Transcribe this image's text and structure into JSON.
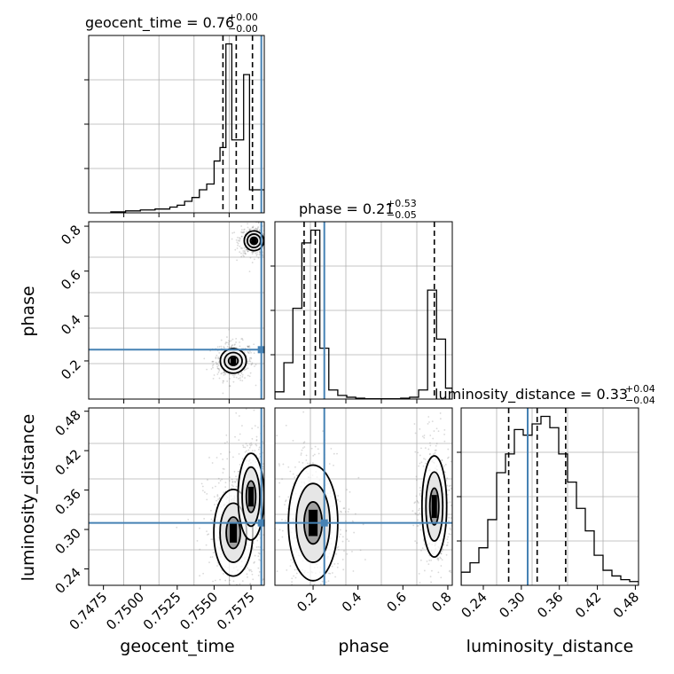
{
  "colors": {
    "truth": "#4682b4",
    "hist_line": "#000000",
    "grid": "#b0b0b0",
    "contour": "#000000",
    "scatter": "#808080"
  },
  "chart_data": [
    {
      "type": "histogram",
      "panel": "geocent_time-marginal",
      "title_main": "geocent_time = 0.76",
      "title_plus": "+0.00",
      "title_minus": "−0.00",
      "xlim": [
        0.7465,
        0.7584
      ],
      "bin_edges": [
        0.748,
        0.749,
        0.75,
        0.751,
        0.752,
        0.7525,
        0.753,
        0.7535,
        0.754,
        0.7545,
        0.755,
        0.7554,
        0.7558,
        0.7562,
        0.7566,
        0.757,
        0.7574,
        0.7578,
        0.7581,
        0.7584
      ],
      "counts": [
        0.005,
        0.01,
        0.015,
        0.02,
        0.03,
        0.04,
        0.06,
        0.08,
        0.12,
        0.15,
        0.27,
        0.34,
        0.88,
        0.38,
        0.38,
        0.72,
        0.12,
        0.12,
        0.12
      ],
      "quantile_lines": [
        0.7556,
        0.7565,
        0.7576
      ],
      "truth": 0.7582,
      "grid": true
    },
    {
      "type": "histogram",
      "panel": "phase-marginal",
      "title_main": "phase = 0.21",
      "title_plus": "+0.53",
      "title_minus": "−0.05",
      "xlim": [
        0.03,
        0.82
      ],
      "bin_edges": [
        0.03,
        0.07,
        0.11,
        0.15,
        0.19,
        0.23,
        0.27,
        0.31,
        0.35,
        0.39,
        0.43,
        0.47,
        0.51,
        0.55,
        0.59,
        0.63,
        0.67,
        0.71,
        0.75,
        0.79,
        0.82
      ],
      "counts": [
        0.04,
        0.2,
        0.5,
        0.86,
        0.93,
        0.28,
        0.05,
        0.02,
        0.01,
        0.005,
        0.002,
        0.002,
        0.002,
        0.002,
        0.005,
        0.01,
        0.05,
        0.6,
        0.33,
        0.06
      ],
      "quantile_lines": [
        0.16,
        0.21,
        0.74
      ],
      "truth": 0.25,
      "grid": true
    },
    {
      "type": "histogram",
      "panel": "luminosity-distance-marginal",
      "title_main": "luminosity_distance = 0.33",
      "title_plus": "+0.04",
      "title_minus": "−0.04",
      "xlim": [
        0.205,
        0.485
      ],
      "xticks": [
        "0.24",
        "0.30",
        "0.36",
        "0.42",
        "0.48"
      ],
      "xtick_values": [
        0.24,
        0.3,
        0.36,
        0.42,
        0.48
      ],
      "xlabel": "luminosity_distance",
      "bin_edges": [
        0.205,
        0.219,
        0.233,
        0.247,
        0.261,
        0.275,
        0.289,
        0.303,
        0.317,
        0.331,
        0.345,
        0.359,
        0.373,
        0.387,
        0.401,
        0.415,
        0.429,
        0.443,
        0.457,
        0.471,
        0.485
      ],
      "counts": [
        0.07,
        0.12,
        0.2,
        0.35,
        0.6,
        0.7,
        0.83,
        0.8,
        0.86,
        0.9,
        0.84,
        0.7,
        0.55,
        0.41,
        0.29,
        0.16,
        0.08,
        0.05,
        0.03,
        0.02
      ],
      "quantile_lines": [
        0.28,
        0.325,
        0.37
      ],
      "truth": 0.31,
      "grid": true
    },
    {
      "type": "2d-density",
      "panel": "phase-vs-geocent_time",
      "xlim": [
        0.7465,
        0.7584
      ],
      "ylim": [
        0.03,
        0.82
      ],
      "yticks": [
        "0.2",
        "0.4",
        "0.6",
        "0.8"
      ],
      "ytick_values": [
        0.2,
        0.4,
        0.6,
        0.8
      ],
      "ylabel": "phase",
      "truth": {
        "x": 0.7582,
        "y": 0.25
      },
      "modes": [
        {
          "x": 0.7563,
          "y": 0.2,
          "sx": 0.0004,
          "sy": 0.025
        },
        {
          "x": 0.7577,
          "y": 0.735,
          "sx": 0.0003,
          "sy": 0.02
        }
      ],
      "grid": true
    },
    {
      "type": "2d-density",
      "panel": "luminosity_distance-vs-geocent_time",
      "xlim": [
        0.7465,
        0.7584
      ],
      "ylim": [
        0.215,
        0.485
      ],
      "xticks": [
        "0.7475",
        "0.7500",
        "0.7525",
        "0.7550",
        "0.7575"
      ],
      "xtick_values": [
        0.7475,
        0.75,
        0.7525,
        0.755,
        0.7575
      ],
      "xlabel": "geocent_time",
      "yticks": [
        "0.24",
        "0.30",
        "0.36",
        "0.42",
        "0.48"
      ],
      "ytick_values": [
        0.24,
        0.3,
        0.36,
        0.42,
        0.48
      ],
      "ylabel": "luminosity_distance",
      "truth": {
        "x": 0.7582,
        "y": 0.31
      },
      "modes": [
        {
          "x": 0.7563,
          "y": 0.295,
          "sx": 0.0006,
          "sy": 0.03
        },
        {
          "x": 0.7575,
          "y": 0.35,
          "sx": 0.0004,
          "sy": 0.03
        }
      ],
      "grid": true
    },
    {
      "type": "2d-density",
      "panel": "luminosity_distance-vs-phase",
      "xlim": [
        0.03,
        0.82
      ],
      "ylim": [
        0.215,
        0.485
      ],
      "xticks": [
        "0.2",
        "0.4",
        "0.6",
        "0.8"
      ],
      "xtick_values": [
        0.2,
        0.4,
        0.6,
        0.8
      ],
      "xlabel": "phase",
      "truth": {
        "x": 0.25,
        "y": 0.31
      },
      "modes": [
        {
          "x": 0.2,
          "y": 0.31,
          "sx": 0.05,
          "sy": 0.04
        },
        {
          "x": 0.74,
          "y": 0.335,
          "sx": 0.025,
          "sy": 0.035
        }
      ],
      "grid": true
    }
  ]
}
